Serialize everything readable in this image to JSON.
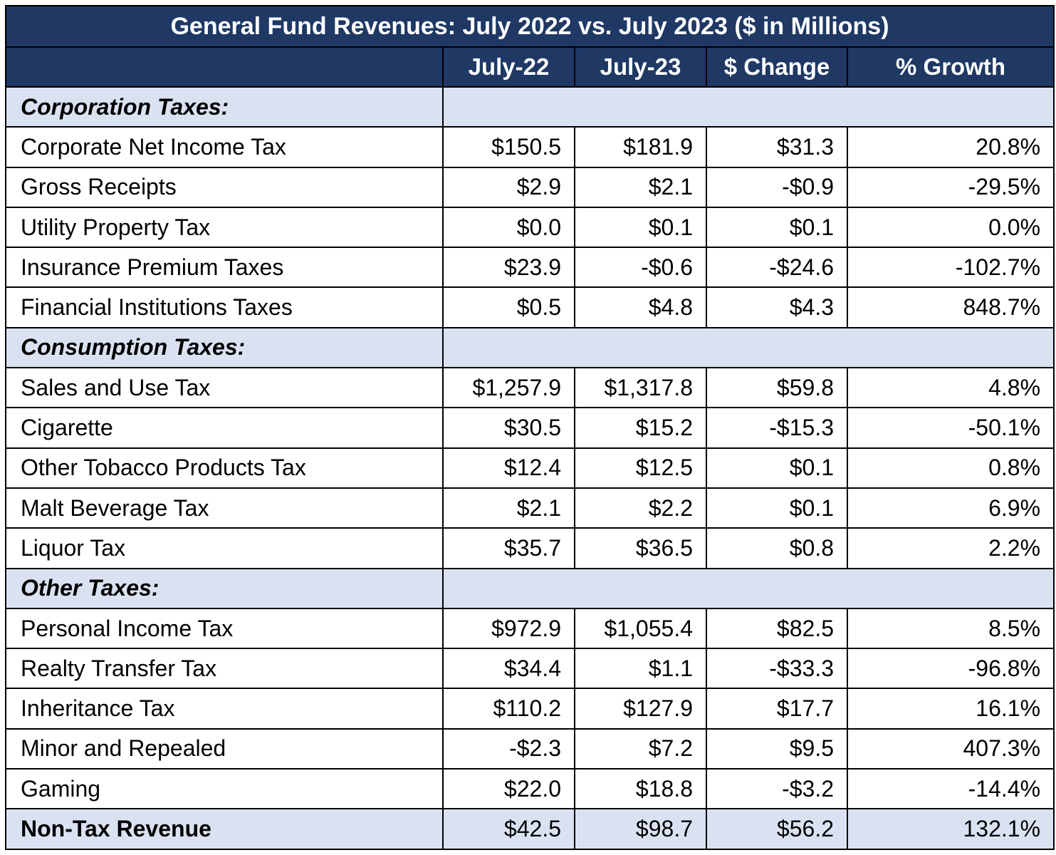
{
  "chart_data": {
    "type": "table",
    "title": "General Fund Revenues: July 2022 vs. July 2023 ($ in Millions)",
    "columns": [
      "",
      "July-22",
      "July-23",
      "$ Change",
      "% Growth"
    ],
    "rows": [
      {
        "kind": "section",
        "label": "Corporation Taxes:"
      },
      {
        "kind": "item",
        "label": "Corporate Net Income Tax",
        "jul22": "$150.5",
        "jul23": "$181.9",
        "change": "$31.3",
        "growth": "20.8%"
      },
      {
        "kind": "item",
        "label": "Gross Receipts",
        "jul22": "$2.9",
        "jul23": "$2.1",
        "change": "-$0.9",
        "growth": "-29.5%"
      },
      {
        "kind": "item",
        "label": "Utility Property Tax",
        "jul22": "$0.0",
        "jul23": "$0.1",
        "change": "$0.1",
        "growth": "0.0%"
      },
      {
        "kind": "item",
        "label": "Insurance Premium Taxes",
        "jul22": "$23.9",
        "jul23": "-$0.6",
        "change": "-$24.6",
        "growth": "-102.7%"
      },
      {
        "kind": "item",
        "label": "Financial Institutions Taxes",
        "jul22": "$0.5",
        "jul23": "$4.8",
        "change": "$4.3",
        "growth": "848.7%"
      },
      {
        "kind": "section",
        "label": "Consumption Taxes:"
      },
      {
        "kind": "item",
        "label": "Sales and Use Tax",
        "jul22": "$1,257.9",
        "jul23": "$1,317.8",
        "change": "$59.8",
        "growth": "4.8%"
      },
      {
        "kind": "item",
        "label": "Cigarette",
        "jul22": "$30.5",
        "jul23": "$15.2",
        "change": "-$15.3",
        "growth": "-50.1%"
      },
      {
        "kind": "item",
        "label": "Other Tobacco Products Tax",
        "jul22": "$12.4",
        "jul23": "$12.5",
        "change": "$0.1",
        "growth": "0.8%"
      },
      {
        "kind": "item",
        "label": "Malt Beverage Tax",
        "jul22": "$2.1",
        "jul23": "$2.2",
        "change": "$0.1",
        "growth": "6.9%"
      },
      {
        "kind": "item",
        "label": "Liquor Tax",
        "jul22": "$35.7",
        "jul23": "$36.5",
        "change": "$0.8",
        "growth": "2.2%"
      },
      {
        "kind": "section",
        "label": "Other Taxes:"
      },
      {
        "kind": "item",
        "label": "Personal Income Tax",
        "jul22": "$972.9",
        "jul23": "$1,055.4",
        "change": "$82.5",
        "growth": "8.5%"
      },
      {
        "kind": "item",
        "label": "Realty Transfer Tax",
        "jul22": "$34.4",
        "jul23": "$1.1",
        "change": "-$33.3",
        "growth": "-96.8%"
      },
      {
        "kind": "item",
        "label": "Inheritance Tax",
        "jul22": "$110.2",
        "jul23": "$127.9",
        "change": "$17.7",
        "growth": "16.1%"
      },
      {
        "kind": "item",
        "label": "Minor and Repealed",
        "jul22": "-$2.3",
        "jul23": "$7.2",
        "change": "$9.5",
        "growth": "407.3%"
      },
      {
        "kind": "item",
        "label": "Gaming",
        "jul22": "$22.0",
        "jul23": "$18.8",
        "change": "-$3.2",
        "growth": "-14.4%"
      },
      {
        "kind": "total",
        "label": "Non-Tax Revenue",
        "jul22": "$42.5",
        "jul23": "$98.7",
        "change": "$56.2",
        "growth": "132.1%"
      }
    ]
  },
  "colors": {
    "header_bg": "#1f3864",
    "header_text": "#ffffff",
    "section_bg": "#dae2f2",
    "border": "#000000"
  }
}
